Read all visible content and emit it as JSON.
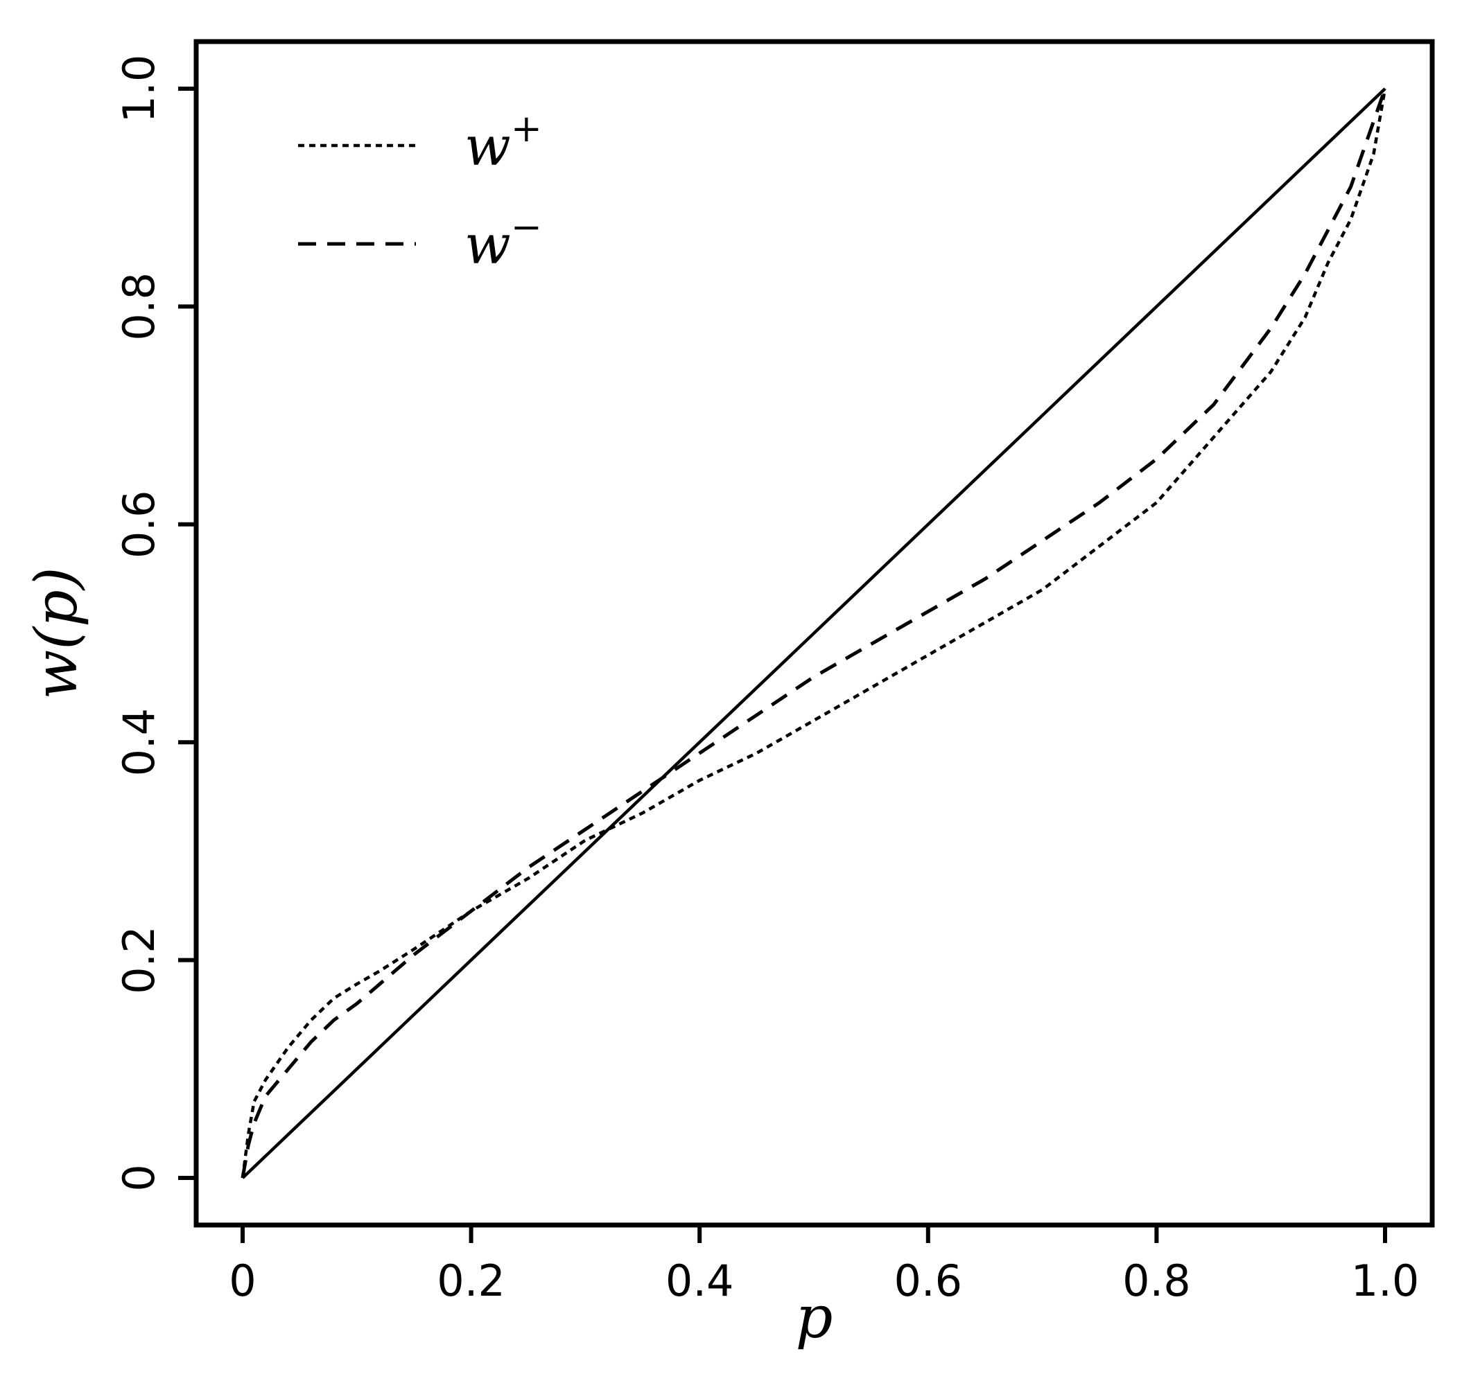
{
  "chart_data": {
    "type": "line",
    "xlabel": "p",
    "ylabel": "w(p)",
    "xlim": [
      -0.04,
      1.04
    ],
    "ylim": [
      -0.04,
      1.04
    ],
    "x_ticks": [
      {
        "value": 0,
        "label": "0"
      },
      {
        "value": 0.2,
        "label": "0.2"
      },
      {
        "value": 0.4,
        "label": "0.4"
      },
      {
        "value": 0.6,
        "label": "0.6"
      },
      {
        "value": 0.8,
        "label": "0.8"
      },
      {
        "value": 1.0,
        "label": "1.0"
      }
    ],
    "y_ticks": [
      {
        "value": 0,
        "label": "0"
      },
      {
        "value": 0.2,
        "label": "0.2"
      },
      {
        "value": 0.4,
        "label": "0.4"
      },
      {
        "value": 0.6,
        "label": "0.6"
      },
      {
        "value": 0.8,
        "label": "0.8"
      },
      {
        "value": 1.0,
        "label": "1.0"
      }
    ],
    "grid": false,
    "legend_position": "top-left",
    "legend": [
      {
        "series": "w_plus",
        "base": "w",
        "sup": "+"
      },
      {
        "series": "w_minus",
        "base": "w",
        "sup": "−"
      }
    ],
    "series": [
      {
        "id": "identity",
        "style": "solid",
        "x": [
          0,
          1
        ],
        "y": [
          0,
          1
        ]
      },
      {
        "id": "w_plus",
        "style": "dotted",
        "x": [
          0,
          0.005,
          0.01,
          0.02,
          0.04,
          0.06,
          0.08,
          0.1,
          0.12,
          0.15,
          0.2,
          0.25,
          0.3,
          0.35,
          0.4,
          0.45,
          0.5,
          0.55,
          0.6,
          0.65,
          0.7,
          0.75,
          0.8,
          0.85,
          0.9,
          0.93,
          0.95,
          0.97,
          0.98,
          0.99,
          1.0
        ],
        "y": [
          0,
          0.04,
          0.07,
          0.09,
          0.12,
          0.145,
          0.165,
          0.178,
          0.19,
          0.21,
          0.245,
          0.275,
          0.31,
          0.335,
          0.365,
          0.39,
          0.42,
          0.45,
          0.48,
          0.51,
          0.54,
          0.58,
          0.62,
          0.68,
          0.74,
          0.79,
          0.84,
          0.88,
          0.91,
          0.94,
          1.0
        ]
      },
      {
        "id": "w_minus",
        "style": "dashed",
        "x": [
          0,
          0.005,
          0.01,
          0.02,
          0.04,
          0.06,
          0.08,
          0.1,
          0.12,
          0.15,
          0.2,
          0.25,
          0.3,
          0.35,
          0.4,
          0.45,
          0.5,
          0.55,
          0.6,
          0.65,
          0.7,
          0.75,
          0.8,
          0.85,
          0.9,
          0.93,
          0.95,
          0.97,
          0.98,
          0.99,
          1.0
        ],
        "y": [
          0,
          0.03,
          0.05,
          0.075,
          0.1,
          0.125,
          0.145,
          0.16,
          0.178,
          0.205,
          0.245,
          0.285,
          0.32,
          0.355,
          0.39,
          0.425,
          0.46,
          0.49,
          0.52,
          0.55,
          0.585,
          0.62,
          0.66,
          0.71,
          0.78,
          0.83,
          0.87,
          0.91,
          0.94,
          0.97,
          1.0
        ]
      }
    ]
  }
}
